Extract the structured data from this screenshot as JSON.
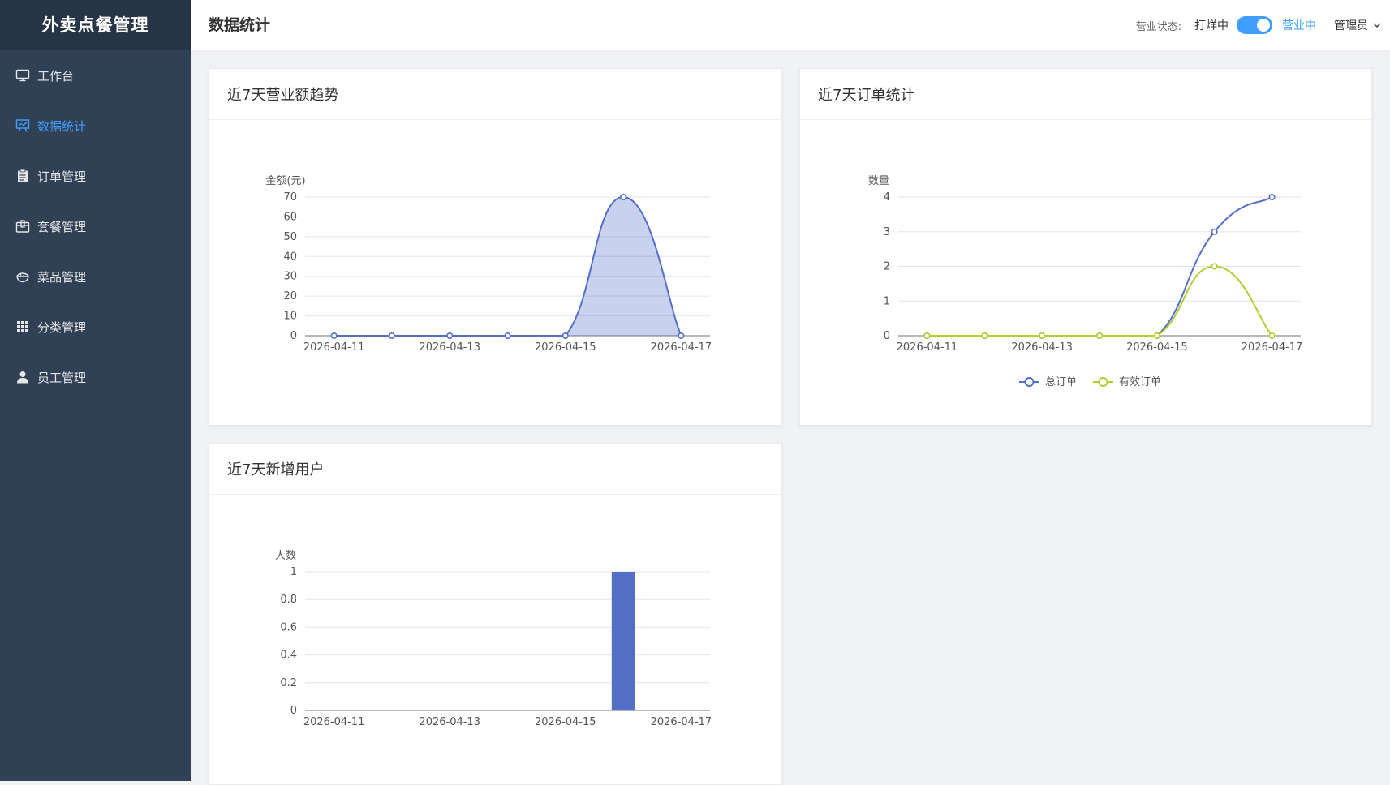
{
  "app": {
    "title": "外卖点餐管理"
  },
  "sidebar": {
    "items": [
      {
        "label": "工作台",
        "icon": "monitor-icon",
        "active": false
      },
      {
        "label": "数据统计",
        "icon": "chart-board-icon",
        "active": true
      },
      {
        "label": "订单管理",
        "icon": "clipboard-icon",
        "active": false
      },
      {
        "label": "套餐管理",
        "icon": "package-icon",
        "active": false
      },
      {
        "label": "菜品管理",
        "icon": "bowl-icon",
        "active": false
      },
      {
        "label": "分类管理",
        "icon": "grid-icon",
        "active": false
      },
      {
        "label": "员工管理",
        "icon": "user-icon",
        "active": false
      }
    ]
  },
  "header": {
    "page_title": "数据统计",
    "status_label": "营业状态:",
    "status_closed": "打烊中",
    "status_open": "营业中",
    "toggle_on": true,
    "admin_label": "管理员"
  },
  "colors": {
    "accent": "#409eff",
    "sidebar_bg": "#304156",
    "series_blue": "#5470c6",
    "series_green": "#b6cc34"
  },
  "chart_data": [
    {
      "id": "revenue",
      "type": "area",
      "title": "近7天营业额趋势",
      "ylabel": "金额(元)",
      "ylim": [
        0,
        70
      ],
      "yticks": [
        0,
        10,
        20,
        30,
        40,
        50,
        60,
        70
      ],
      "x": [
        "2026-04-11",
        "2026-04-12",
        "2026-04-13",
        "2026-04-14",
        "2026-04-15",
        "2026-04-16",
        "2026-04-17"
      ],
      "xtick_labels": [
        "2026-04-11",
        "2026-04-13",
        "2026-04-15",
        "2026-04-17"
      ],
      "series": [
        {
          "values": [
            0,
            0,
            0,
            0,
            0,
            70,
            0
          ]
        }
      ]
    },
    {
      "id": "orders",
      "type": "line",
      "title": "近7天订单统计",
      "ylabel": "数量",
      "ylim": [
        0,
        4
      ],
      "yticks": [
        0,
        1,
        2,
        3,
        4
      ],
      "x": [
        "2026-04-11",
        "2026-04-12",
        "2026-04-13",
        "2026-04-14",
        "2026-04-15",
        "2026-04-16",
        "2026-04-17"
      ],
      "xtick_labels": [
        "2026-04-11",
        "2026-04-13",
        "2026-04-15",
        "2026-04-17"
      ],
      "legend_position": "bottom-center",
      "series": [
        {
          "name": "总订单",
          "values": [
            0,
            0,
            0,
            0,
            0,
            3,
            4
          ]
        },
        {
          "name": "有效订单",
          "values": [
            0,
            0,
            0,
            0,
            0,
            2,
            0
          ]
        }
      ]
    },
    {
      "id": "users",
      "type": "bar",
      "title": "近7天新增用户",
      "ylabel": "人数",
      "ylim": [
        0,
        1
      ],
      "yticks": [
        "0",
        "0.2",
        "0.4",
        "0.6",
        "0.8",
        "1"
      ],
      "x": [
        "2026-04-11",
        "2026-04-12",
        "2026-04-13",
        "2026-04-14",
        "2026-04-15",
        "2026-04-16",
        "2026-04-17"
      ],
      "xtick_labels": [
        "2026-04-11",
        "2026-04-13",
        "2026-04-15",
        "2026-04-17"
      ],
      "series": [
        {
          "values": [
            0,
            0,
            0,
            0,
            0,
            1,
            0
          ]
        }
      ]
    }
  ]
}
